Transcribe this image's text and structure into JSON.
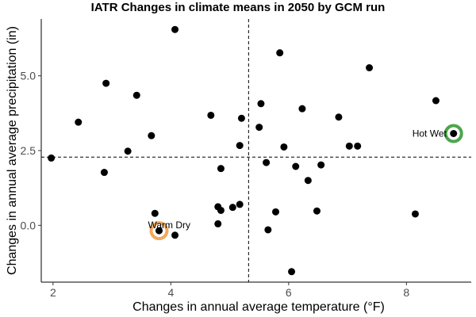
{
  "chart_data": {
    "type": "scatter",
    "title": "IATR Changes in climate means in 2050 by GCM run",
    "xlabel": "Changes in annual average temperature (°F)",
    "ylabel": "Changes in annual average precipitation (in)",
    "xlim": [
      1.8,
      9.1
    ],
    "ylim": [
      -1.9,
      6.9
    ],
    "x_ticks": [
      2,
      4,
      6,
      8
    ],
    "x_tick_labels": [
      "2",
      "4",
      "6",
      "8"
    ],
    "y_ticks": [
      0.0,
      2.5,
      5.0
    ],
    "y_tick_labels": [
      "0.0",
      "2.5",
      "5.0"
    ],
    "grid": false,
    "reference_lines": {
      "x": 5.32,
      "y": 2.28
    },
    "points": [
      {
        "x": 1.97,
        "y": 2.25
      },
      {
        "x": 2.43,
        "y": 3.45
      },
      {
        "x": 2.87,
        "y": 1.77
      },
      {
        "x": 2.9,
        "y": 4.75
      },
      {
        "x": 3.27,
        "y": 2.48
      },
      {
        "x": 3.42,
        "y": 4.35
      },
      {
        "x": 3.67,
        "y": 3.0
      },
      {
        "x": 3.73,
        "y": 0.4
      },
      {
        "x": 3.8,
        "y": -0.18
      },
      {
        "x": 4.07,
        "y": 6.55
      },
      {
        "x": 4.07,
        "y": -0.33
      },
      {
        "x": 4.68,
        "y": 3.68
      },
      {
        "x": 4.8,
        "y": 0.62
      },
      {
        "x": 4.8,
        "y": 0.05
      },
      {
        "x": 4.85,
        "y": 0.5
      },
      {
        "x": 4.85,
        "y": 1.9
      },
      {
        "x": 5.05,
        "y": 0.6
      },
      {
        "x": 5.17,
        "y": 0.7
      },
      {
        "x": 5.17,
        "y": 2.67
      },
      {
        "x": 5.2,
        "y": 3.58
      },
      {
        "x": 5.5,
        "y": 3.28
      },
      {
        "x": 5.53,
        "y": 4.07
      },
      {
        "x": 5.62,
        "y": 2.1
      },
      {
        "x": 5.65,
        "y": -0.15
      },
      {
        "x": 5.78,
        "y": 0.45
      },
      {
        "x": 5.85,
        "y": 5.77
      },
      {
        "x": 5.92,
        "y": 2.62
      },
      {
        "x": 6.05,
        "y": -1.55
      },
      {
        "x": 6.12,
        "y": 1.97
      },
      {
        "x": 6.23,
        "y": 3.9
      },
      {
        "x": 6.33,
        "y": 1.5
      },
      {
        "x": 6.48,
        "y": 0.48
      },
      {
        "x": 6.55,
        "y": 2.02
      },
      {
        "x": 6.85,
        "y": 3.62
      },
      {
        "x": 7.03,
        "y": 2.65
      },
      {
        "x": 7.17,
        "y": 2.65
      },
      {
        "x": 7.37,
        "y": 5.27
      },
      {
        "x": 8.15,
        "y": 0.38
      },
      {
        "x": 8.5,
        "y": 4.17
      },
      {
        "x": 8.8,
        "y": 3.07
      }
    ],
    "highlighted": [
      {
        "label": "Warm Dry",
        "x": 3.8,
        "y": -0.18,
        "color": "#f4a95c"
      },
      {
        "label": "Hot Wet",
        "x": 8.8,
        "y": 3.07,
        "color": "#4ca64c"
      }
    ],
    "point_color": "#000000"
  }
}
